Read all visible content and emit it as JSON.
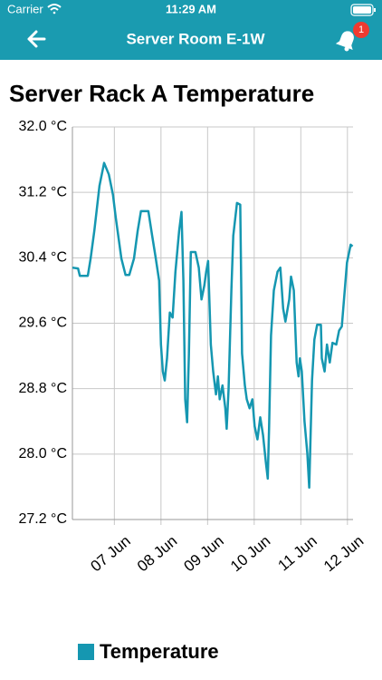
{
  "status_bar": {
    "carrier": "Carrier",
    "time": "11:29 AM"
  },
  "nav_bar": {
    "title": "Server Room E-1W",
    "badge": 1
  },
  "chart_data": {
    "type": "line",
    "title": "Server Rack A Temperature",
    "x": [
      6.1,
      6.22,
      6.26,
      6.43,
      6.49,
      6.57,
      6.68,
      6.78,
      6.88,
      6.97,
      7.03,
      7.15,
      7.24,
      7.32,
      7.42,
      7.5,
      7.57,
      7.73,
      7.81,
      7.88,
      7.96,
      8.0,
      8.04,
      8.08,
      8.13,
      8.19,
      8.25,
      8.31,
      8.39,
      8.44,
      8.48,
      8.52,
      8.56,
      8.6,
      8.64,
      8.74,
      8.81,
      8.87,
      8.93,
      8.97,
      9.01,
      9.07,
      9.12,
      9.18,
      9.22,
      9.26,
      9.32,
      9.38,
      9.41,
      9.45,
      9.51,
      9.55,
      9.63,
      9.7,
      9.74,
      9.8,
      9.84,
      9.9,
      9.96,
      10.01,
      10.07,
      10.13,
      10.19,
      10.25,
      10.29,
      10.32,
      10.36,
      10.42,
      10.5,
      10.56,
      10.62,
      10.67,
      10.75,
      10.79,
      10.85,
      10.91,
      10.95,
      10.98,
      11.02,
      11.08,
      11.14,
      11.18,
      11.24,
      11.29,
      11.35,
      11.43,
      11.45,
      11.51,
      11.56,
      11.62,
      11.68,
      11.76,
      11.82,
      11.88,
      11.91,
      11.99,
      12.07,
      12.11
    ],
    "series": [
      {
        "name": "Temperature",
        "color": "#1597b1",
        "values": [
          30.28,
          30.27,
          30.18,
          30.18,
          30.39,
          30.73,
          31.28,
          31.56,
          31.42,
          31.17,
          30.89,
          30.39,
          30.19,
          30.19,
          30.39,
          30.73,
          30.97,
          30.97,
          30.67,
          30.42,
          30.12,
          29.34,
          29.01,
          28.9,
          29.17,
          29.73,
          29.67,
          30.23,
          30.73,
          30.96,
          30.12,
          28.67,
          28.39,
          29.23,
          30.47,
          30.47,
          30.28,
          29.89,
          30.06,
          30.23,
          30.36,
          29.34,
          29.01,
          28.73,
          28.95,
          28.67,
          28.84,
          28.56,
          28.31,
          28.79,
          30.0,
          30.67,
          31.07,
          31.05,
          29.23,
          28.84,
          28.67,
          28.56,
          28.67,
          28.34,
          28.18,
          28.45,
          28.23,
          27.9,
          27.7,
          28.34,
          29.45,
          30.0,
          30.23,
          30.28,
          29.78,
          29.62,
          29.89,
          30.17,
          30.0,
          29.12,
          28.95,
          29.17,
          29.01,
          28.4,
          28.01,
          27.59,
          28.9,
          29.4,
          29.58,
          29.58,
          29.17,
          29.01,
          29.34,
          29.12,
          29.36,
          29.34,
          29.51,
          29.56,
          29.78,
          30.34,
          30.56,
          30.54
        ]
      }
    ],
    "xlim": [
      6.1,
      12.12
    ],
    "xticks": [
      {
        "value": 7,
        "label": "07 Jun"
      },
      {
        "value": 8,
        "label": "08 Jun"
      },
      {
        "value": 9,
        "label": "09 Jun"
      },
      {
        "value": 10,
        "label": "10 Jun"
      },
      {
        "value": 11,
        "label": "11 Jun"
      },
      {
        "value": 12,
        "label": "12 Jun"
      }
    ],
    "ylim": [
      27.2,
      32.0
    ],
    "yticks": [
      {
        "value": 27.2,
        "label": "27.2 °C"
      },
      {
        "value": 28.0,
        "label": "28.0 °C"
      },
      {
        "value": 28.8,
        "label": "28.8 °C"
      },
      {
        "value": 29.6,
        "label": "29.6 °C"
      },
      {
        "value": 30.4,
        "label": "30.4 °C"
      },
      {
        "value": 31.2,
        "label": "31.2 °C"
      },
      {
        "value": 32.0,
        "label": "32.0 °C"
      }
    ],
    "grid": true,
    "legend": "bottom"
  }
}
